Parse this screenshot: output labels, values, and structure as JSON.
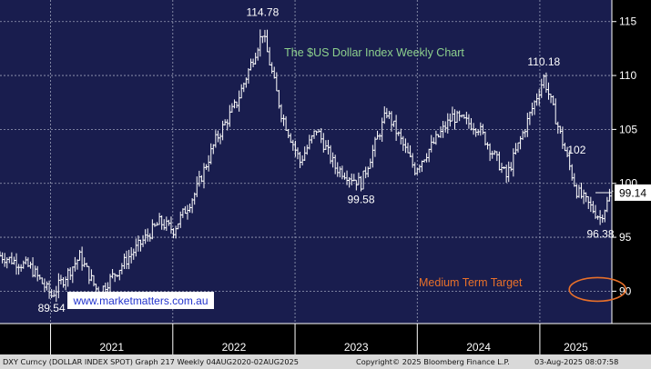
{
  "chart_data": {
    "type": "ohlc",
    "title": "The $US Dollar Index Weekly Chart",
    "x_labels": [
      "2021",
      "2022",
      "2023",
      "2024",
      "2025"
    ],
    "y_ticks": [
      90,
      95,
      100,
      105,
      110,
      115
    ],
    "ylim": [
      87,
      117
    ],
    "xlim": [
      "2020-08-03",
      "2025-08-04"
    ],
    "grid": true,
    "last_value": "99.14",
    "annotations": [
      {
        "text": "114.78",
        "x": "2022-09-26",
        "y": 114.78
      },
      {
        "text": "110.18",
        "x": "2025-01-13",
        "y": 110.18
      },
      {
        "text": "102",
        "x": "2025-04-21",
        "y": 102
      },
      {
        "text": "99.58",
        "x": "2023-07-17",
        "y": 99.58
      },
      {
        "text": "96.38",
        "x": "2025-07-01",
        "y": 96.38
      },
      {
        "text": "89.54",
        "x": "2021-01-04",
        "y": 89.54
      }
    ],
    "target_label": "Medium Term Target",
    "target_level": 90,
    "watermark": "www.marketmatters.com.au",
    "key_points": [
      {
        "x": "2020-08-03",
        "y": 93.3
      },
      {
        "x": "2020-11-02",
        "y": 92.2
      },
      {
        "x": "2021-01-04",
        "y": 89.6
      },
      {
        "x": "2021-03-29",
        "y": 93.2
      },
      {
        "x": "2021-05-24",
        "y": 89.8
      },
      {
        "x": "2021-08-23",
        "y": 93.2
      },
      {
        "x": "2021-11-22",
        "y": 96.4
      },
      {
        "x": "2022-01-03",
        "y": 95.7
      },
      {
        "x": "2022-03-07",
        "y": 99.0
      },
      {
        "x": "2022-05-09",
        "y": 104.0
      },
      {
        "x": "2022-07-11",
        "y": 107.5
      },
      {
        "x": "2022-09-26",
        "y": 114.0
      },
      {
        "x": "2022-11-21",
        "y": 106.5
      },
      {
        "x": "2023-01-16",
        "y": 102.0
      },
      {
        "x": "2023-03-06",
        "y": 105.0
      },
      {
        "x": "2023-05-01",
        "y": 101.5
      },
      {
        "x": "2023-07-17",
        "y": 100.0
      },
      {
        "x": "2023-10-02",
        "y": 106.6
      },
      {
        "x": "2023-12-25",
        "y": 101.3
      },
      {
        "x": "2024-04-15",
        "y": 106.2
      },
      {
        "x": "2024-07-01",
        "y": 105.2
      },
      {
        "x": "2024-09-23",
        "y": 100.6
      },
      {
        "x": "2025-01-13",
        "y": 109.8
      },
      {
        "x": "2025-03-10",
        "y": 103.8
      },
      {
        "x": "2025-04-21",
        "y": 99.3
      },
      {
        "x": "2025-06-30",
        "y": 96.8
      },
      {
        "x": "2025-08-04",
        "y": 99.14
      }
    ]
  },
  "colors": {
    "background": "#000000",
    "plot_background": "#191d4e",
    "grid": "#9aa0b8",
    "price_bars": "#ffffff",
    "title": "#8dd08d",
    "target": "#e8702a",
    "watermark_bg": "#ffffff",
    "watermark_text": "#2233cc",
    "footer_bg": "#d9d9d9"
  },
  "footer": {
    "left": "DXY Curncy (DOLLAR INDEX SPOT) Graph 217  Weekly 04AUG2020-02AUG2025",
    "center": "Copyright© 2025 Bloomberg Finance L.P.",
    "right": "03-Aug-2025 08:07:58"
  }
}
